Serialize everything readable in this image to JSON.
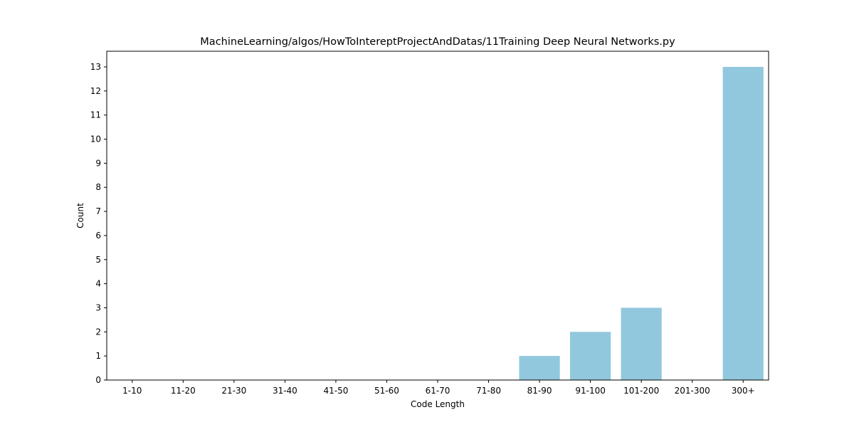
{
  "chart_data": {
    "type": "bar",
    "title": "MachineLearning/algos/HowToIntereptProjectAndDatas/11Training Deep Neural Networks.py",
    "xlabel": "Code Length",
    "ylabel": "Count",
    "categories": [
      "1-10",
      "11-20",
      "21-30",
      "31-40",
      "41-50",
      "51-60",
      "61-70",
      "71-80",
      "81-90",
      "91-100",
      "101-200",
      "201-300",
      "300+"
    ],
    "values": [
      0,
      0,
      0,
      0,
      0,
      0,
      0,
      0,
      1,
      2,
      3,
      0,
      13
    ],
    "ylim": [
      0,
      13.65
    ],
    "yticks": [
      0,
      1,
      2,
      3,
      4,
      5,
      6,
      7,
      8,
      9,
      10,
      11,
      12,
      13
    ],
    "grid": false,
    "legend": "none",
    "bar_color": "#92c8dd"
  }
}
